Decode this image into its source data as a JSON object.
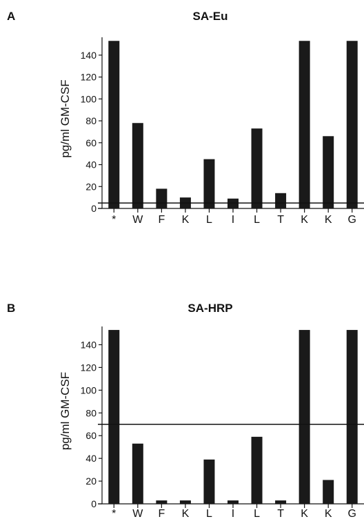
{
  "figure": {
    "panels": [
      {
        "letter": "A",
        "title": "SA-Eu"
      },
      {
        "letter": "B",
        "title": "SA-HRP"
      }
    ]
  },
  "chart_data": [
    {
      "type": "bar",
      "panel": "A",
      "title": "SA-Eu",
      "xlabel": "",
      "ylabel": "pg/ml GM-CSF",
      "categories": [
        "*",
        "W",
        "F",
        "K",
        "L",
        "I",
        "L",
        "T",
        "K",
        "K",
        "G"
      ],
      "values": [
        153,
        78,
        18,
        10,
        45,
        9,
        73,
        14,
        153,
        66,
        153
      ],
      "ylim": [
        0,
        150
      ],
      "yticks": [
        0,
        20,
        40,
        60,
        80,
        100,
        120,
        140
      ],
      "reference_line": 5,
      "bar_color": "#1a1a1a",
      "grid": false
    },
    {
      "type": "bar",
      "panel": "B",
      "title": "SA-HRP",
      "xlabel": "",
      "ylabel": "pg/ml GM-CSF",
      "categories": [
        "*",
        "W",
        "F",
        "K",
        "L",
        "I",
        "L",
        "T",
        "K",
        "K",
        "G"
      ],
      "values": [
        153,
        53,
        3,
        3,
        39,
        3,
        59,
        3,
        153,
        21,
        153
      ],
      "ylim": [
        0,
        150
      ],
      "yticks": [
        0,
        20,
        40,
        60,
        80,
        100,
        120,
        140
      ],
      "reference_line": 70,
      "bar_color": "#1a1a1a",
      "grid": false
    }
  ]
}
